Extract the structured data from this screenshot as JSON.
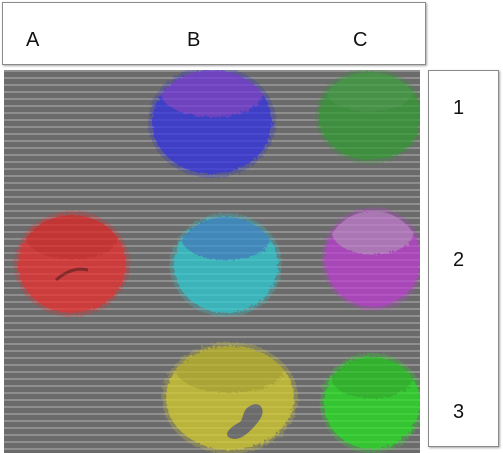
{
  "columns": [
    "A",
    "B",
    "C"
  ],
  "rows": [
    "1",
    "2",
    "3"
  ],
  "spots": [
    {
      "id": "A1",
      "present": false
    },
    {
      "id": "B1",
      "present": true,
      "color": "#2f2fe8",
      "accent": "#c23bd0"
    },
    {
      "id": "C1",
      "present": true,
      "color": "#2e9a2e",
      "accent": "#4aa84a"
    },
    {
      "id": "A2",
      "present": true,
      "color": "#f02c2c",
      "accent": "#d01818"
    },
    {
      "id": "B2",
      "present": true,
      "color": "#2ccfd6",
      "accent": "#3a4ad8"
    },
    {
      "id": "C2",
      "present": true,
      "color": "#c03ad6",
      "accent": "#c8c8c8"
    },
    {
      "id": "A3",
      "present": false
    },
    {
      "id": "B3",
      "present": true,
      "color": "#d9cf2a",
      "accent": "#a89f1c"
    },
    {
      "id": "C3",
      "present": true,
      "color": "#22e81c",
      "accent": "#1aa816"
    }
  ],
  "panel_background": "#6b6b6b",
  "scanline_color": "#8f8f8f"
}
